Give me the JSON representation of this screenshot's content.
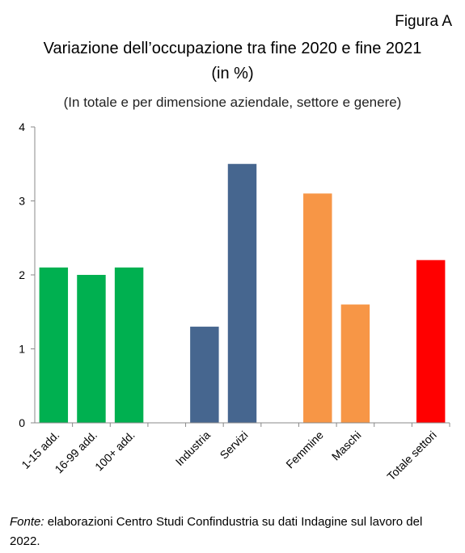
{
  "figure_label": "Figura A",
  "title_line1": "Variazione dell’occupazione tra fine 2020 e fine 2021",
  "title_line2": "(in %)",
  "subtitle": "(In totale e per dimensione aziendale, settore e genere)",
  "source_lead": "Fonte:",
  "source_text": " elaborazioni Centro Studi Confindustria su dati Indagine sul lavoro del 2022.",
  "chart_data": {
    "type": "bar",
    "categories": [
      "1-15 add.",
      "16-99 add.",
      "100+ add.",
      "",
      "Industria",
      "Servizi",
      "",
      "Femmine",
      "Maschi",
      "",
      "Totale settori"
    ],
    "values": [
      2.1,
      2.0,
      2.1,
      null,
      1.3,
      3.5,
      null,
      3.1,
      1.6,
      null,
      2.2
    ],
    "colors": [
      "#00b050",
      "#00b050",
      "#00b050",
      null,
      "#46668f",
      "#46668f",
      null,
      "#f79646",
      "#f79646",
      null,
      "#ff0000"
    ],
    "ylim": [
      0,
      4
    ],
    "yticks": [
      0,
      1,
      2,
      3,
      4
    ],
    "xlabel": "",
    "ylabel": "",
    "grid": false
  }
}
